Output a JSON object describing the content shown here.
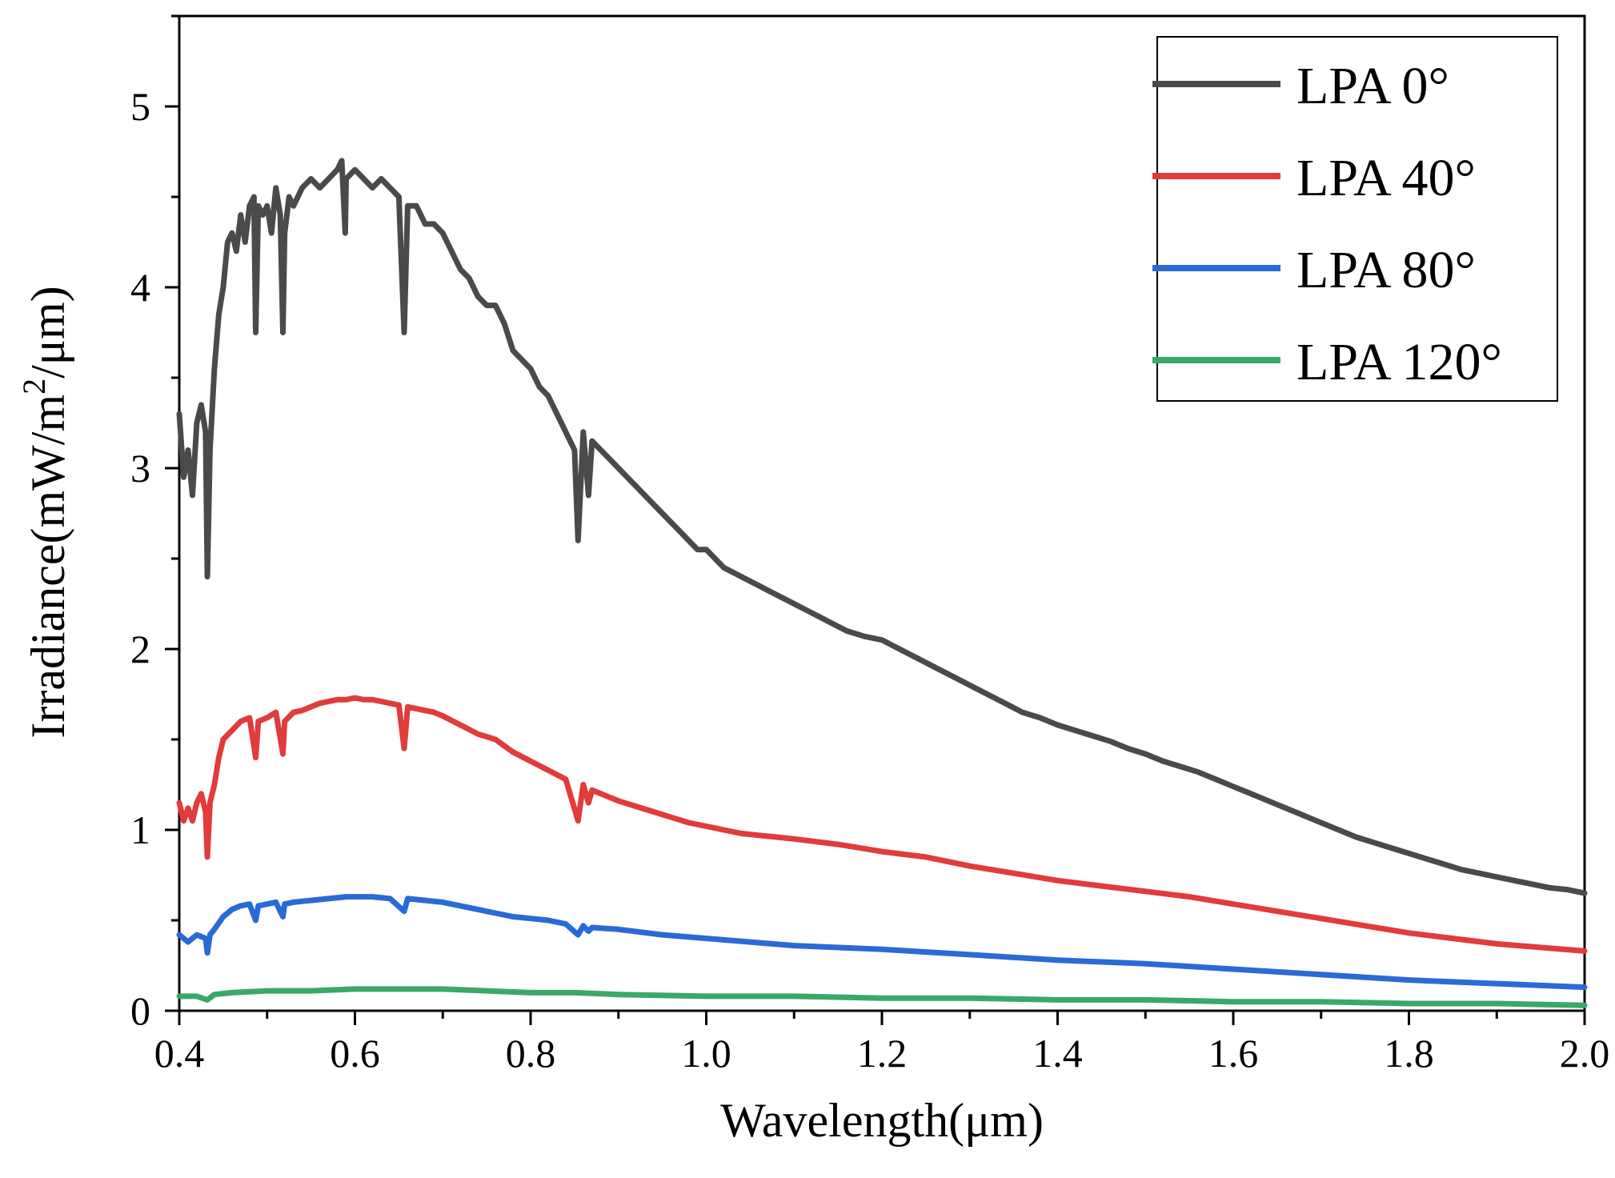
{
  "chart_data": {
    "type": "line",
    "title": "",
    "xlabel": "Wavelength(μm)",
    "ylabel_main": "Irradiance(mW/m",
    "ylabel_sup": "2",
    "ylabel_tail": "/μm)",
    "xlim": [
      0.4,
      2.0
    ],
    "ylim": [
      0,
      5.5
    ],
    "xticks": [
      0.4,
      0.6,
      0.8,
      1.0,
      1.2,
      1.4,
      1.6,
      1.8,
      2.0
    ],
    "xtick_labels": [
      "0.4",
      "0.6",
      "0.8",
      "1.0",
      "1.2",
      "1.4",
      "1.6",
      "1.8",
      "2.0"
    ],
    "yticks": [
      0,
      1,
      2,
      3,
      4,
      5
    ],
    "ytick_labels": [
      "0",
      "1",
      "2",
      "3",
      "4",
      "5"
    ],
    "x_minor_step": 0.1,
    "y_minor_step": 0.5,
    "legend_position": "top-right",
    "series": [
      {
        "name": "LPA 0°",
        "color": "#4a4a4a",
        "points": [
          [
            0.4,
            3.3
          ],
          [
            0.405,
            2.95
          ],
          [
            0.41,
            3.1
          ],
          [
            0.415,
            2.85
          ],
          [
            0.42,
            3.25
          ],
          [
            0.425,
            3.35
          ],
          [
            0.43,
            3.2
          ],
          [
            0.432,
            2.4
          ],
          [
            0.435,
            3.1
          ],
          [
            0.44,
            3.55
          ],
          [
            0.445,
            3.85
          ],
          [
            0.45,
            4.0
          ],
          [
            0.455,
            4.25
          ],
          [
            0.46,
            4.3
          ],
          [
            0.465,
            4.2
          ],
          [
            0.47,
            4.4
          ],
          [
            0.475,
            4.25
          ],
          [
            0.48,
            4.45
          ],
          [
            0.485,
            4.5
          ],
          [
            0.487,
            3.75
          ],
          [
            0.49,
            4.45
          ],
          [
            0.495,
            4.4
          ],
          [
            0.5,
            4.45
          ],
          [
            0.505,
            4.3
          ],
          [
            0.51,
            4.55
          ],
          [
            0.515,
            4.4
          ],
          [
            0.518,
            3.75
          ],
          [
            0.52,
            4.3
          ],
          [
            0.525,
            4.5
          ],
          [
            0.53,
            4.45
          ],
          [
            0.54,
            4.55
          ],
          [
            0.55,
            4.6
          ],
          [
            0.56,
            4.55
          ],
          [
            0.57,
            4.6
          ],
          [
            0.58,
            4.65
          ],
          [
            0.585,
            4.7
          ],
          [
            0.589,
            4.3
          ],
          [
            0.59,
            4.6
          ],
          [
            0.6,
            4.65
          ],
          [
            0.61,
            4.6
          ],
          [
            0.62,
            4.55
          ],
          [
            0.63,
            4.6
          ],
          [
            0.64,
            4.55
          ],
          [
            0.65,
            4.5
          ],
          [
            0.656,
            3.75
          ],
          [
            0.66,
            4.45
          ],
          [
            0.67,
            4.45
          ],
          [
            0.68,
            4.35
          ],
          [
            0.69,
            4.35
          ],
          [
            0.7,
            4.3
          ],
          [
            0.71,
            4.2
          ],
          [
            0.72,
            4.1
          ],
          [
            0.73,
            4.05
          ],
          [
            0.74,
            3.95
          ],
          [
            0.75,
            3.9
          ],
          [
            0.76,
            3.9
          ],
          [
            0.77,
            3.8
          ],
          [
            0.78,
            3.65
          ],
          [
            0.79,
            3.6
          ],
          [
            0.8,
            3.55
          ],
          [
            0.81,
            3.45
          ],
          [
            0.82,
            3.4
          ],
          [
            0.83,
            3.3
          ],
          [
            0.84,
            3.2
          ],
          [
            0.85,
            3.1
          ],
          [
            0.854,
            2.6
          ],
          [
            0.86,
            3.2
          ],
          [
            0.866,
            2.85
          ],
          [
            0.87,
            3.15
          ],
          [
            0.88,
            3.1
          ],
          [
            0.89,
            3.05
          ],
          [
            0.9,
            3.0
          ],
          [
            0.91,
            2.95
          ],
          [
            0.92,
            2.9
          ],
          [
            0.93,
            2.85
          ],
          [
            0.94,
            2.8
          ],
          [
            0.95,
            2.75
          ],
          [
            0.96,
            2.7
          ],
          [
            0.97,
            2.65
          ],
          [
            0.98,
            2.6
          ],
          [
            0.99,
            2.55
          ],
          [
            1.0,
            2.55
          ],
          [
            1.01,
            2.5
          ],
          [
            1.02,
            2.45
          ],
          [
            1.04,
            2.4
          ],
          [
            1.06,
            2.35
          ],
          [
            1.08,
            2.3
          ],
          [
            1.1,
            2.25
          ],
          [
            1.12,
            2.2
          ],
          [
            1.14,
            2.15
          ],
          [
            1.16,
            2.1
          ],
          [
            1.18,
            2.07
          ],
          [
            1.2,
            2.05
          ],
          [
            1.22,
            2.0
          ],
          [
            1.24,
            1.95
          ],
          [
            1.26,
            1.9
          ],
          [
            1.28,
            1.85
          ],
          [
            1.3,
            1.8
          ],
          [
            1.32,
            1.75
          ],
          [
            1.34,
            1.7
          ],
          [
            1.36,
            1.65
          ],
          [
            1.38,
            1.62
          ],
          [
            1.4,
            1.58
          ],
          [
            1.42,
            1.55
          ],
          [
            1.44,
            1.52
          ],
          [
            1.46,
            1.49
          ],
          [
            1.48,
            1.45
          ],
          [
            1.5,
            1.42
          ],
          [
            1.52,
            1.38
          ],
          [
            1.54,
            1.35
          ],
          [
            1.56,
            1.32
          ],
          [
            1.58,
            1.28
          ],
          [
            1.6,
            1.24
          ],
          [
            1.62,
            1.2
          ],
          [
            1.64,
            1.16
          ],
          [
            1.66,
            1.12
          ],
          [
            1.68,
            1.08
          ],
          [
            1.7,
            1.04
          ],
          [
            1.72,
            1.0
          ],
          [
            1.74,
            0.96
          ],
          [
            1.76,
            0.93
          ],
          [
            1.78,
            0.9
          ],
          [
            1.8,
            0.87
          ],
          [
            1.82,
            0.84
          ],
          [
            1.84,
            0.81
          ],
          [
            1.86,
            0.78
          ],
          [
            1.88,
            0.76
          ],
          [
            1.9,
            0.74
          ],
          [
            1.92,
            0.72
          ],
          [
            1.94,
            0.7
          ],
          [
            1.96,
            0.68
          ],
          [
            1.98,
            0.67
          ],
          [
            2.0,
            0.65
          ]
        ]
      },
      {
        "name": "LPA 40°",
        "color": "#e23b3b",
        "points": [
          [
            0.4,
            1.15
          ],
          [
            0.405,
            1.05
          ],
          [
            0.41,
            1.12
          ],
          [
            0.415,
            1.05
          ],
          [
            0.42,
            1.15
          ],
          [
            0.425,
            1.2
          ],
          [
            0.43,
            1.1
          ],
          [
            0.432,
            0.85
          ],
          [
            0.435,
            1.15
          ],
          [
            0.44,
            1.25
          ],
          [
            0.445,
            1.4
          ],
          [
            0.45,
            1.5
          ],
          [
            0.46,
            1.55
          ],
          [
            0.47,
            1.6
          ],
          [
            0.48,
            1.62
          ],
          [
            0.487,
            1.4
          ],
          [
            0.49,
            1.6
          ],
          [
            0.5,
            1.62
          ],
          [
            0.51,
            1.65
          ],
          [
            0.518,
            1.42
          ],
          [
            0.52,
            1.6
          ],
          [
            0.53,
            1.65
          ],
          [
            0.54,
            1.66
          ],
          [
            0.55,
            1.68
          ],
          [
            0.56,
            1.7
          ],
          [
            0.57,
            1.71
          ],
          [
            0.58,
            1.72
          ],
          [
            0.59,
            1.72
          ],
          [
            0.6,
            1.73
          ],
          [
            0.61,
            1.72
          ],
          [
            0.62,
            1.72
          ],
          [
            0.63,
            1.71
          ],
          [
            0.64,
            1.7
          ],
          [
            0.65,
            1.69
          ],
          [
            0.656,
            1.45
          ],
          [
            0.66,
            1.68
          ],
          [
            0.67,
            1.67
          ],
          [
            0.68,
            1.66
          ],
          [
            0.69,
            1.65
          ],
          [
            0.7,
            1.63
          ],
          [
            0.72,
            1.58
          ],
          [
            0.74,
            1.53
          ],
          [
            0.76,
            1.5
          ],
          [
            0.78,
            1.43
          ],
          [
            0.8,
            1.38
          ],
          [
            0.82,
            1.33
          ],
          [
            0.84,
            1.28
          ],
          [
            0.854,
            1.05
          ],
          [
            0.86,
            1.25
          ],
          [
            0.866,
            1.15
          ],
          [
            0.87,
            1.22
          ],
          [
            0.88,
            1.2
          ],
          [
            0.9,
            1.16
          ],
          [
            0.92,
            1.13
          ],
          [
            0.94,
            1.1
          ],
          [
            0.96,
            1.07
          ],
          [
            0.98,
            1.04
          ],
          [
            1.0,
            1.02
          ],
          [
            1.02,
            1.0
          ],
          [
            1.04,
            0.98
          ],
          [
            1.06,
            0.97
          ],
          [
            1.08,
            0.96
          ],
          [
            1.1,
            0.95
          ],
          [
            1.15,
            0.92
          ],
          [
            1.2,
            0.88
          ],
          [
            1.25,
            0.85
          ],
          [
            1.3,
            0.8
          ],
          [
            1.35,
            0.76
          ],
          [
            1.4,
            0.72
          ],
          [
            1.45,
            0.69
          ],
          [
            1.5,
            0.66
          ],
          [
            1.55,
            0.63
          ],
          [
            1.6,
            0.59
          ],
          [
            1.65,
            0.55
          ],
          [
            1.7,
            0.51
          ],
          [
            1.75,
            0.47
          ],
          [
            1.8,
            0.43
          ],
          [
            1.85,
            0.4
          ],
          [
            1.9,
            0.37
          ],
          [
            1.95,
            0.35
          ],
          [
            2.0,
            0.33
          ]
        ]
      },
      {
        "name": "LPA 80°",
        "color": "#2a6ad6",
        "points": [
          [
            0.4,
            0.42
          ],
          [
            0.41,
            0.38
          ],
          [
            0.42,
            0.42
          ],
          [
            0.43,
            0.4
          ],
          [
            0.432,
            0.32
          ],
          [
            0.435,
            0.42
          ],
          [
            0.44,
            0.45
          ],
          [
            0.45,
            0.52
          ],
          [
            0.46,
            0.56
          ],
          [
            0.47,
            0.58
          ],
          [
            0.48,
            0.59
          ],
          [
            0.487,
            0.5
          ],
          [
            0.49,
            0.58
          ],
          [
            0.5,
            0.59
          ],
          [
            0.51,
            0.6
          ],
          [
            0.518,
            0.52
          ],
          [
            0.52,
            0.59
          ],
          [
            0.53,
            0.6
          ],
          [
            0.55,
            0.61
          ],
          [
            0.57,
            0.62
          ],
          [
            0.59,
            0.63
          ],
          [
            0.6,
            0.63
          ],
          [
            0.62,
            0.63
          ],
          [
            0.64,
            0.62
          ],
          [
            0.656,
            0.55
          ],
          [
            0.66,
            0.62
          ],
          [
            0.68,
            0.61
          ],
          [
            0.7,
            0.6
          ],
          [
            0.72,
            0.58
          ],
          [
            0.74,
            0.56
          ],
          [
            0.76,
            0.54
          ],
          [
            0.78,
            0.52
          ],
          [
            0.8,
            0.51
          ],
          [
            0.82,
            0.5
          ],
          [
            0.84,
            0.48
          ],
          [
            0.854,
            0.42
          ],
          [
            0.86,
            0.47
          ],
          [
            0.866,
            0.44
          ],
          [
            0.87,
            0.46
          ],
          [
            0.9,
            0.45
          ],
          [
            0.95,
            0.42
          ],
          [
            1.0,
            0.4
          ],
          [
            1.05,
            0.38
          ],
          [
            1.1,
            0.36
          ],
          [
            1.2,
            0.34
          ],
          [
            1.3,
            0.31
          ],
          [
            1.4,
            0.28
          ],
          [
            1.5,
            0.26
          ],
          [
            1.6,
            0.23
          ],
          [
            1.7,
            0.2
          ],
          [
            1.8,
            0.17
          ],
          [
            1.9,
            0.15
          ],
          [
            2.0,
            0.13
          ]
        ]
      },
      {
        "name": "LPA 120°",
        "color": "#3aa86a",
        "points": [
          [
            0.4,
            0.08
          ],
          [
            0.42,
            0.08
          ],
          [
            0.432,
            0.06
          ],
          [
            0.44,
            0.09
          ],
          [
            0.46,
            0.1
          ],
          [
            0.5,
            0.11
          ],
          [
            0.55,
            0.11
          ],
          [
            0.6,
            0.12
          ],
          [
            0.65,
            0.12
          ],
          [
            0.7,
            0.12
          ],
          [
            0.75,
            0.11
          ],
          [
            0.8,
            0.1
          ],
          [
            0.85,
            0.1
          ],
          [
            0.9,
            0.09
          ],
          [
            1.0,
            0.08
          ],
          [
            1.1,
            0.08
          ],
          [
            1.2,
            0.07
          ],
          [
            1.3,
            0.07
          ],
          [
            1.4,
            0.06
          ],
          [
            1.5,
            0.06
          ],
          [
            1.6,
            0.05
          ],
          [
            1.7,
            0.05
          ],
          [
            1.8,
            0.04
          ],
          [
            1.9,
            0.04
          ],
          [
            2.0,
            0.03
          ]
        ]
      }
    ]
  }
}
